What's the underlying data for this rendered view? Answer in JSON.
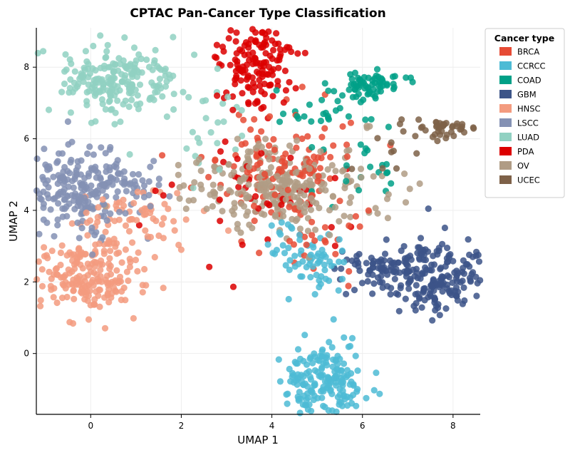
{
  "chart_data": {
    "type": "scatter",
    "title": "CPTAC Pan-Cancer Type Classification",
    "xlabel": "UMAP 1",
    "ylabel": "UMAP 2",
    "xlim": [
      -1.2,
      8.6
    ],
    "ylim": [
      -1.7,
      9.1
    ],
    "xticks": [
      0,
      2,
      4,
      6,
      8
    ],
    "yticks": [
      0,
      2,
      4,
      6,
      8
    ],
    "xtick_labels": [
      "0",
      "2",
      "4",
      "6",
      "8"
    ],
    "ytick_labels": [
      "0",
      "2",
      "4",
      "6",
      "8"
    ],
    "grid": true,
    "legend": {
      "title": "Cancer type",
      "placement": "outside-top-right"
    },
    "series": [
      {
        "name": "BRCA",
        "color": "#E64B35",
        "n_points": 150,
        "clusters": [
          {
            "cx": 4.2,
            "cy": 5.2,
            "sx": 0.75,
            "sy": 0.8,
            "n": 130
          },
          {
            "cx": 5.1,
            "cy": 3.3,
            "sx": 0.5,
            "sy": 0.5,
            "n": 20
          }
        ]
      },
      {
        "name": "CCRCC",
        "color": "#4DBBD5",
        "n_points": 260,
        "clusters": [
          {
            "cx": 5.2,
            "cy": -0.8,
            "sx": 0.45,
            "sy": 0.6,
            "n": 190
          },
          {
            "cx": 5.0,
            "cy": 2.6,
            "sx": 0.35,
            "sy": 0.4,
            "n": 50
          },
          {
            "cx": 4.3,
            "cy": 3.2,
            "sx": 0.3,
            "sy": 0.3,
            "n": 20
          }
        ]
      },
      {
        "name": "COAD",
        "color": "#00A087",
        "n_points": 110,
        "clusters": [
          {
            "cx": 6.2,
            "cy": 7.5,
            "sx": 0.3,
            "sy": 0.2,
            "n": 60
          },
          {
            "cx": 5.3,
            "cy": 6.8,
            "sx": 0.6,
            "sy": 0.3,
            "n": 30
          },
          {
            "cx": 6.0,
            "cy": 5.0,
            "sx": 0.6,
            "sy": 0.6,
            "n": 20
          }
        ]
      },
      {
        "name": "GBM",
        "color": "#3C5488",
        "n_points": 260,
        "clusters": [
          {
            "cx": 7.6,
            "cy": 2.1,
            "sx": 0.6,
            "sy": 0.5,
            "n": 200
          },
          {
            "cx": 6.3,
            "cy": 2.4,
            "sx": 0.5,
            "sy": 0.3,
            "n": 60
          }
        ]
      },
      {
        "name": "HNSC",
        "color": "#F39B7F",
        "n_points": 270,
        "clusters": [
          {
            "cx": 0.0,
            "cy": 2.2,
            "sx": 0.55,
            "sy": 0.55,
            "n": 200
          },
          {
            "cx": 1.0,
            "cy": 3.8,
            "sx": 0.7,
            "sy": 0.5,
            "n": 70
          }
        ]
      },
      {
        "name": "LSCC",
        "color": "#8491B4",
        "n_points": 240,
        "clusters": [
          {
            "cx": -0.3,
            "cy": 4.6,
            "sx": 0.6,
            "sy": 0.6,
            "n": 200
          },
          {
            "cx": 0.8,
            "cy": 4.6,
            "sx": 0.5,
            "sy": 0.4,
            "n": 40
          }
        ]
      },
      {
        "name": "LUAD",
        "color": "#91D1C2",
        "n_points": 230,
        "clusters": [
          {
            "cx": 0.6,
            "cy": 7.6,
            "sx": 0.65,
            "sy": 0.5,
            "n": 200
          },
          {
            "cx": 2.4,
            "cy": 6.5,
            "sx": 0.7,
            "sy": 0.8,
            "n": 30
          }
        ]
      },
      {
        "name": "PDA",
        "color": "#DC0000",
        "n_points": 190,
        "clusters": [
          {
            "cx": 3.7,
            "cy": 8.2,
            "sx": 0.4,
            "sy": 0.6,
            "n": 150
          },
          {
            "cx": 3.8,
            "cy": 4.5,
            "sx": 0.9,
            "sy": 0.9,
            "n": 40
          }
        ]
      },
      {
        "name": "OV",
        "color": "#B09C85",
        "n_points": 280,
        "clusters": [
          {
            "cx": 4.2,
            "cy": 4.7,
            "sx": 1.0,
            "sy": 0.6,
            "n": 280
          }
        ]
      },
      {
        "name": "UCEC",
        "color": "#7E6148",
        "n_points": 50,
        "clusters": [
          {
            "cx": 7.8,
            "cy": 6.3,
            "sx": 0.35,
            "sy": 0.15,
            "n": 40
          },
          {
            "cx": 6.6,
            "cy": 5.6,
            "sx": 0.4,
            "sy": 0.4,
            "n": 10
          }
        ]
      }
    ]
  }
}
